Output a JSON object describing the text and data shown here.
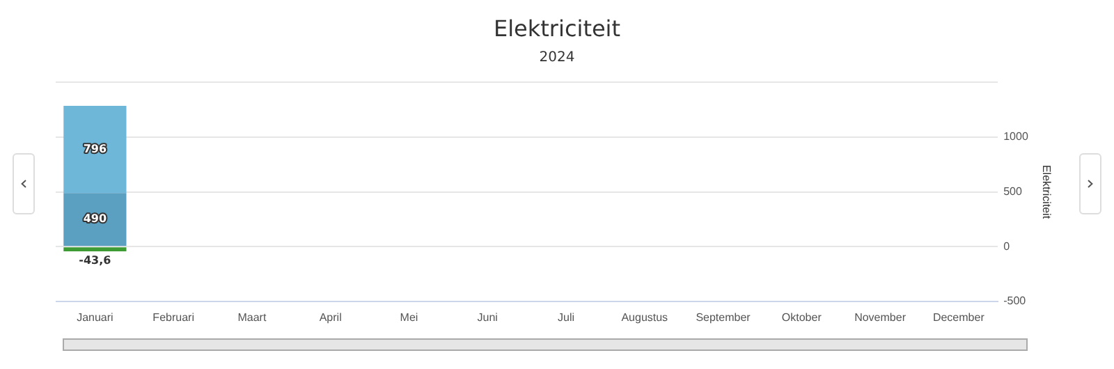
{
  "chart_data": {
    "type": "bar",
    "title": "Elektriciteit",
    "subtitle": "2024",
    "ylabel": "Elektriciteit",
    "categories": [
      "Januari",
      "Februari",
      "Maart",
      "April",
      "Mei",
      "Juni",
      "Juli",
      "Augustus",
      "September",
      "Oktober",
      "November",
      "December"
    ],
    "series": [
      {
        "color": "#3f9c35",
        "values": [
          -43.6,
          null,
          null,
          null,
          null,
          null,
          null,
          null,
          null,
          null,
          null,
          null
        ],
        "value_labels": [
          "-43,6",
          null,
          null,
          null,
          null,
          null,
          null,
          null,
          null,
          null,
          null,
          null
        ]
      },
      {
        "color": "#5b9fc1",
        "values": [
          490,
          null,
          null,
          null,
          null,
          null,
          null,
          null,
          null,
          null,
          null,
          null
        ],
        "value_labels": [
          "490",
          null,
          null,
          null,
          null,
          null,
          null,
          null,
          null,
          null,
          null,
          null
        ]
      },
      {
        "color": "#6fb7d8",
        "values": [
          796,
          null,
          null,
          null,
          null,
          null,
          null,
          null,
          null,
          null,
          null,
          null
        ],
        "value_labels": [
          "796",
          null,
          null,
          null,
          null,
          null,
          null,
          null,
          null,
          null,
          null,
          null
        ]
      }
    ],
    "stacked": true,
    "grid": "y",
    "legend": false,
    "ylim": [
      -500,
      1500
    ],
    "yticks": [
      -500,
      0,
      500,
      1000,
      {
        "value": 1500,
        "label": null
      }
    ]
  }
}
